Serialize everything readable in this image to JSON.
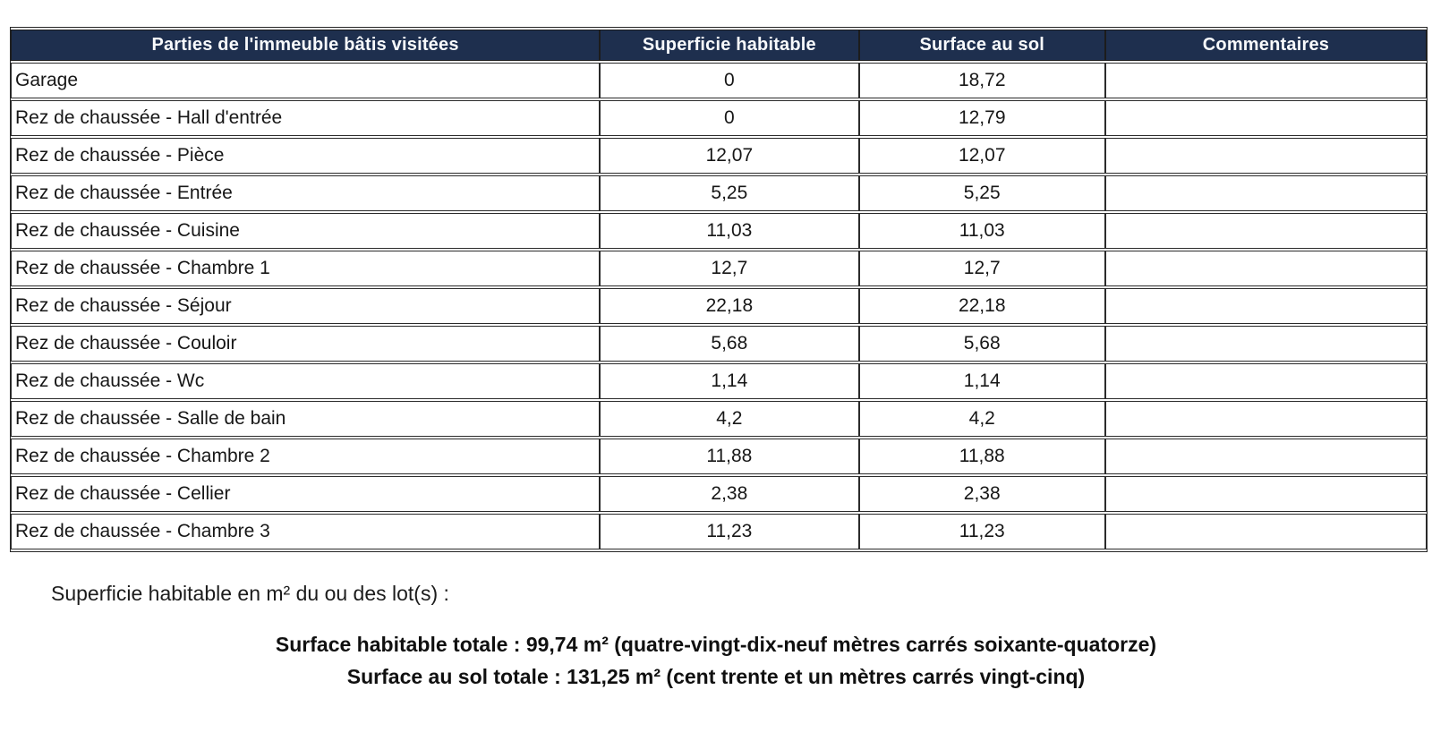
{
  "colors": {
    "header_bg": "#1e2f4e",
    "header_text": "#f8fafc",
    "border": "#2b2b2b",
    "text": "#171717"
  },
  "table": {
    "headers": [
      "Parties de l'immeuble bâtis visitées",
      "Superficie habitable",
      "Surface au sol",
      "Commentaires"
    ],
    "rows": [
      {
        "label": "Garage",
        "superficie": "0",
        "surface": "18,72",
        "commentaire": ""
      },
      {
        "label": "Rez de chaussée - Hall d'entrée",
        "superficie": "0",
        "surface": "12,79",
        "commentaire": ""
      },
      {
        "label": "Rez de chaussée - Pièce",
        "superficie": "12,07",
        "surface": "12,07",
        "commentaire": ""
      },
      {
        "label": "Rez de chaussée - Entrée",
        "superficie": "5,25",
        "surface": "5,25",
        "commentaire": ""
      },
      {
        "label": "Rez de chaussée - Cuisine",
        "superficie": "11,03",
        "surface": "11,03",
        "commentaire": ""
      },
      {
        "label": "Rez de chaussée - Chambre 1",
        "superficie": "12,7",
        "surface": "12,7",
        "commentaire": ""
      },
      {
        "label": "Rez de chaussée - Séjour",
        "superficie": "22,18",
        "surface": "22,18",
        "commentaire": ""
      },
      {
        "label": "Rez de chaussée - Couloir",
        "superficie": "5,68",
        "surface": "5,68",
        "commentaire": ""
      },
      {
        "label": "Rez de chaussée - Wc",
        "superficie": "1,14",
        "surface": "1,14",
        "commentaire": ""
      },
      {
        "label": "Rez de chaussée - Salle de bain",
        "superficie": "4,2",
        "surface": "4,2",
        "commentaire": ""
      },
      {
        "label": "Rez de chaussée - Chambre 2",
        "superficie": "11,88",
        "surface": "11,88",
        "commentaire": ""
      },
      {
        "label": "Rez de chaussée - Cellier",
        "superficie": "2,38",
        "surface": "2,38",
        "commentaire": ""
      },
      {
        "label": "Rez de chaussée - Chambre 3",
        "superficie": "11,23",
        "surface": "11,23",
        "commentaire": ""
      }
    ]
  },
  "summary": {
    "note": "Superficie habitable en m² du ou des lot(s) :",
    "total_habitable": "Surface habitable totale : 99,74 m² (quatre-vingt-dix-neuf mètres carrés soixante-quatorze)",
    "total_sol": "Surface au sol totale : 131,25 m² (cent trente et un mètres carrés vingt-cinq)"
  }
}
